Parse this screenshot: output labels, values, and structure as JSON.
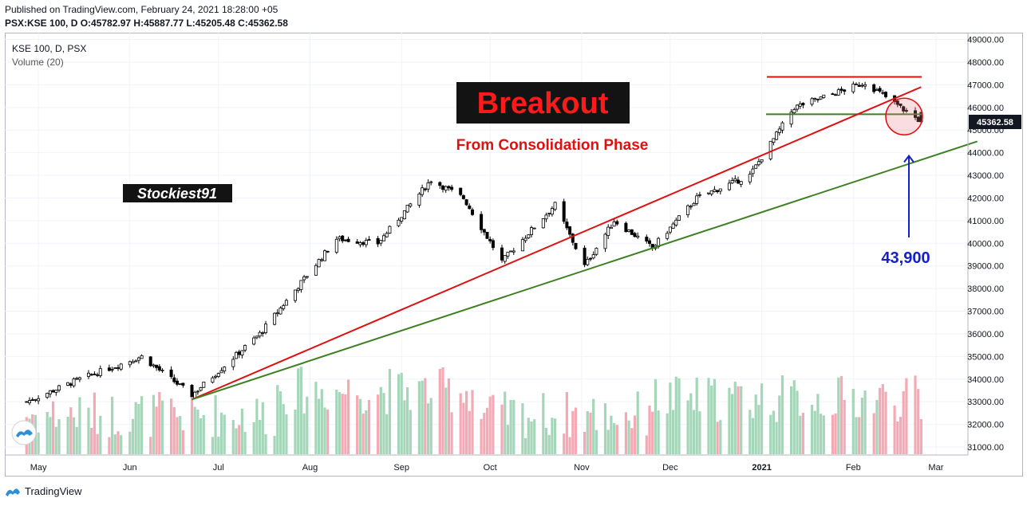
{
  "header": {
    "published": "Published on TradingView.com, February 24, 2021 18:28:00 +05",
    "ohlc": "PSX:KSE 100, D  O:45782.97 H:45887.77 L:45205.48 C:45362.58"
  },
  "legend": {
    "symbol": "KSE 100, D, PSX",
    "volume": "Volume (20)"
  },
  "footer": {
    "brand": "TradingView"
  },
  "colors": {
    "up_candle": "#ffffff",
    "down_candle": "#000000",
    "up_volume": "#a5d6b9",
    "down_volume": "#f5a9b5",
    "red_line": "#e01010",
    "green_line": "#3c8021",
    "arrow": "#1520c8",
    "grid": "#f0f3fa"
  },
  "annotations": {
    "breakout": "Breakout",
    "consolidation": "From Consolidation Phase",
    "stockiest": "Stockiest91",
    "target": "43,900",
    "last_price": "45362.58"
  },
  "chart_data": {
    "type": "candlestick",
    "title": "KSE 100, D, PSX",
    "x_tick_labels": [
      "May",
      "Jun",
      "Jul",
      "Aug",
      "Sep",
      "Oct",
      "Nov",
      "Dec",
      "2021",
      "Feb",
      "Mar"
    ],
    "y_tick_labels": [
      "31000.00",
      "32000.00",
      "33000.00",
      "34000.00",
      "35000.00",
      "36000.00",
      "37000.00",
      "38000.00",
      "39000.00",
      "40000.00",
      "41000.00",
      "42000.00",
      "43000.00",
      "44000.00",
      "45000.00",
      "46000.00",
      "47000.00",
      "48000.00",
      "49000.00"
    ],
    "ylim": [
      30700,
      49300
    ],
    "key_points": [
      {
        "date": "2020-04-27",
        "close": 33000
      },
      {
        "date": "2020-05-15",
        "close": 34000
      },
      {
        "date": "2020-06-05",
        "close": 35000
      },
      {
        "date": "2020-06-22",
        "close": 33300
      },
      {
        "date": "2020-07-15",
        "close": 36000
      },
      {
        "date": "2020-08-10",
        "close": 40200
      },
      {
        "date": "2020-08-24",
        "close": 40000
      },
      {
        "date": "2020-09-11",
        "close": 42800
      },
      {
        "date": "2020-09-22",
        "close": 42000
      },
      {
        "date": "2020-10-05",
        "close": 39200
      },
      {
        "date": "2020-10-23",
        "close": 41700
      },
      {
        "date": "2020-11-02",
        "close": 39000
      },
      {
        "date": "2020-11-12",
        "close": 41000
      },
      {
        "date": "2020-11-25",
        "close": 39800
      },
      {
        "date": "2020-12-10",
        "close": 42000
      },
      {
        "date": "2020-12-28",
        "close": 43000
      },
      {
        "date": "2021-01-12",
        "close": 46000
      },
      {
        "date": "2021-02-05",
        "close": 47100
      },
      {
        "date": "2021-02-24",
        "close": 45362.58
      }
    ],
    "horizontal_lines": [
      {
        "price": 47350,
        "color": "red"
      },
      {
        "price": 45700,
        "color": "green"
      }
    ],
    "trendlines": [
      {
        "color": "red",
        "from": {
          "date": "2020-06-22",
          "price": 33100
        },
        "to": {
          "date": "2021-02-24",
          "price": 46900
        }
      },
      {
        "color": "green",
        "from": {
          "date": "2020-06-22",
          "price": 33100
        },
        "to": {
          "date": "2021-03-15",
          "price": 44500
        }
      }
    ],
    "target_price": 43900
  }
}
